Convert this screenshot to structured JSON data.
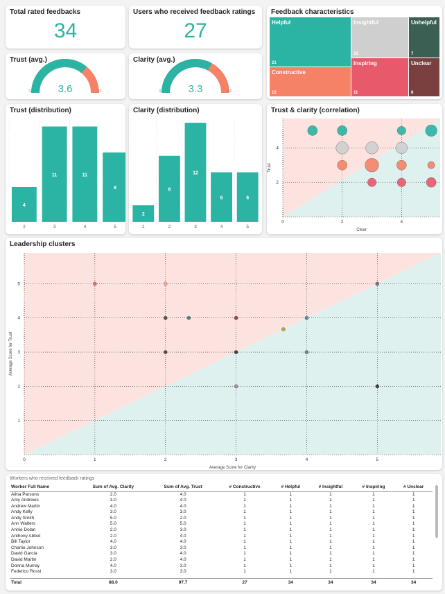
{
  "colors": {
    "teal": "#2bb3a3",
    "orange": "#f58266",
    "pink": "#fde3e0",
    "mint": "#dff1ee",
    "grey": "#cfcfcf",
    "darkgreen": "#3c5f54",
    "crimson": "#e8596c",
    "maroon": "#7a4040"
  },
  "kpis": {
    "total_title": "Total rated feedbacks",
    "total_value": "34",
    "users_title": "Users who received feedback ratings",
    "users_value": "27"
  },
  "gauges": {
    "trust": {
      "title": "Trust (avg.)",
      "value": "3.6",
      "min": "0.0",
      "max": "5.0",
      "fraction": 0.72
    },
    "clarity": {
      "title": "Clarity (avg.)",
      "value": "3.3",
      "min": "0.0",
      "max": "5.0",
      "fraction": 0.66
    }
  },
  "treemap": {
    "title": "Feedback characteristics",
    "items": [
      {
        "label": "Helpful",
        "value": "21",
        "color": "#2bb3a3"
      },
      {
        "label": "Insightful",
        "value": "12",
        "color": "#cfcfcf"
      },
      {
        "label": "Unhelpful",
        "value": "7",
        "color": "#3c5f54"
      },
      {
        "label": "Constructive",
        "value": "12",
        "color": "#f58266"
      },
      {
        "label": "Inspiring",
        "value": "11",
        "color": "#e8596c"
      },
      {
        "label": "Unclear",
        "value": "8",
        "color": "#7a4040"
      }
    ]
  },
  "chart_data": [
    {
      "type": "bar",
      "id": "trust_dist",
      "title": "Trust (distribution)",
      "categories": [
        "2",
        "3",
        "4",
        "5"
      ],
      "values": [
        4,
        11,
        11,
        8
      ],
      "ylim": [
        0,
        12
      ]
    },
    {
      "type": "bar",
      "id": "clarity_dist",
      "title": "Clarity (distribution)",
      "categories": [
        "1",
        "2",
        "3",
        "4",
        "5"
      ],
      "values": [
        2,
        8,
        12,
        6,
        6
      ],
      "ylim": [
        0,
        12.6
      ]
    },
    {
      "type": "scatter",
      "id": "correlation",
      "title": "Trust & clarity (correlation)",
      "xlabel": "Clear",
      "ylabel": "Trust",
      "xlim": [
        0,
        5.3
      ],
      "ylim": [
        0,
        5.7
      ],
      "xticks": [
        0,
        2,
        4
      ],
      "yticks": [
        2,
        4
      ],
      "points": [
        {
          "x": 1,
          "y": 5,
          "size": 3,
          "color": "#2bb3a3"
        },
        {
          "x": 2,
          "y": 5,
          "size": 3,
          "color": "#2bb3a3"
        },
        {
          "x": 4,
          "y": 5,
          "size": 2,
          "color": "#2bb3a3"
        },
        {
          "x": 5,
          "y": 5,
          "size": 5,
          "color": "#2bb3a3"
        },
        {
          "x": 2,
          "y": 4,
          "size": 6,
          "color": "#cfcfcf"
        },
        {
          "x": 3,
          "y": 4,
          "size": 6,
          "color": "#cfcfcf"
        },
        {
          "x": 4,
          "y": 4,
          "size": 5,
          "color": "#cfcfcf"
        },
        {
          "x": 2,
          "y": 3,
          "size": 3,
          "color": "#f58266"
        },
        {
          "x": 3,
          "y": 3,
          "size": 8,
          "color": "#f58266"
        },
        {
          "x": 4,
          "y": 3,
          "size": 3,
          "color": "#f58266"
        },
        {
          "x": 5,
          "y": 3,
          "size": 1,
          "color": "#f58266"
        },
        {
          "x": 3,
          "y": 2,
          "size": 2,
          "color": "#e8596c"
        },
        {
          "x": 4,
          "y": 2,
          "size": 2,
          "color": "#e8596c"
        },
        {
          "x": 5,
          "y": 2,
          "size": 3,
          "color": "#e8596c"
        }
      ]
    },
    {
      "type": "scatter",
      "id": "leadership",
      "title": "Leadership clusters",
      "xlabel": "Average Score for Clarity",
      "ylabel": "Average Score for Trust",
      "xlim": [
        0,
        5.9
      ],
      "ylim": [
        0,
        5.9
      ],
      "xticks": [
        0,
        1,
        2,
        3,
        4,
        5
      ],
      "yticks": [
        1,
        2,
        3,
        4,
        5
      ],
      "points": [
        {
          "x": 1,
          "y": 5,
          "color": "#c9795a"
        },
        {
          "x": 2,
          "y": 5,
          "color": "#f5a590"
        },
        {
          "x": 5,
          "y": 5,
          "color": "#7a6a6a"
        },
        {
          "x": 2,
          "y": 4,
          "color": "#444444"
        },
        {
          "x": 2.33,
          "y": 4,
          "color": "#2f7d78"
        },
        {
          "x": 3,
          "y": 4,
          "color": "#8b3a3a"
        },
        {
          "x": 4,
          "y": 4,
          "color": "#3f86b5"
        },
        {
          "x": 3.67,
          "y": 3.67,
          "color": "#a8a040"
        },
        {
          "x": 2,
          "y": 3,
          "color": "#444444"
        },
        {
          "x": 3,
          "y": 3,
          "color": "#333333"
        },
        {
          "x": 4,
          "y": 3,
          "color": "#6a7a7a"
        },
        {
          "x": 3,
          "y": 2,
          "color": "#9a8aa8"
        },
        {
          "x": 5,
          "y": 2,
          "color": "#333333"
        }
      ]
    }
  ],
  "table": {
    "title": "Workers who received feedback ratings",
    "headers": [
      "Worker Full Name",
      "Sum of Avg. Clarity",
      "Sum of Avg. Trust",
      "# Constructive",
      "# Helpful",
      "# Insightful",
      "# Inspiring",
      "# Unclear"
    ],
    "rows": [
      [
        "Alina Parsons",
        "2.0",
        "4.0",
        "1",
        "1",
        "1",
        "1",
        "1"
      ],
      [
        "Amy Andrews",
        "3.0",
        "4.0",
        "1",
        "1",
        "1",
        "1",
        "1"
      ],
      [
        "Andrew Martin",
        "4.0",
        "4.0",
        "1",
        "1",
        "1",
        "1",
        "1"
      ],
      [
        "Andy Kelly",
        "3.0",
        "3.0",
        "1",
        "1",
        "1",
        "1",
        "1"
      ],
      [
        "Andy Smith",
        "5.0",
        "2.0",
        "1",
        "1",
        "1",
        "1",
        "1"
      ],
      [
        "Ann Walters",
        "5.0",
        "5.0",
        "1",
        "1",
        "1",
        "1",
        "1"
      ],
      [
        "Annie Dolan",
        "2.0",
        "3.0",
        "1",
        "1",
        "1",
        "1",
        "1"
      ],
      [
        "Anthony Abbot",
        "2.0",
        "4.0",
        "1",
        "1",
        "1",
        "1",
        "1"
      ],
      [
        "Bill Taylor",
        "4.0",
        "4.0",
        "1",
        "1",
        "1",
        "1",
        "1"
      ],
      [
        "Charlie Johnson",
        "3.0",
        "3.0",
        "1",
        "1",
        "1",
        "1",
        "1"
      ],
      [
        "David Garcia",
        "3.0",
        "4.0",
        "1",
        "1",
        "1",
        "1",
        "1"
      ],
      [
        "David Martin",
        "2.0",
        "4.0",
        "1",
        "1",
        "1",
        "1",
        "1"
      ],
      [
        "Donna Murray",
        "4.0",
        "3.0",
        "1",
        "1",
        "1",
        "1",
        "1"
      ],
      [
        "Federico Rossi",
        "3.0",
        "3.0",
        "1",
        "1",
        "1",
        "1",
        "1"
      ]
    ],
    "total": [
      "Total",
      "88.0",
      "97.7",
      "27",
      "34",
      "34",
      "34",
      "34"
    ]
  }
}
